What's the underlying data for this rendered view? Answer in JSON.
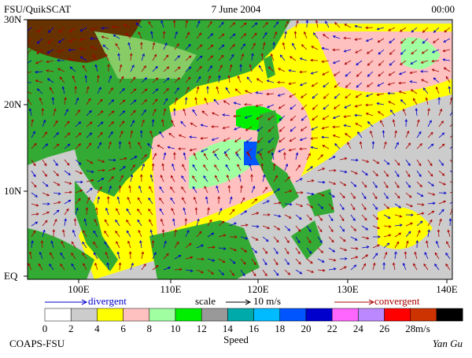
{
  "header": {
    "source": "FSU/QuikSCAT",
    "date": "7 June 2004",
    "time": "00:00"
  },
  "map": {
    "lat_labels": [
      "30N",
      "20N",
      "10N",
      "EQ"
    ],
    "lon_labels": [
      "100E",
      "110E",
      "120E",
      "130E",
      "140E"
    ]
  },
  "legend": {
    "divergent": "divergent",
    "scale": "scale",
    "scale_value": "10 m/s",
    "convergent": "convergent"
  },
  "colorbar": {
    "labels": [
      "0",
      "2",
      "4",
      "6",
      "8",
      "10",
      "12",
      "14",
      "16",
      "18",
      "20",
      "22",
      "24",
      "26",
      "28"
    ],
    "unit": "m/s",
    "title": "Speed",
    "colors": [
      "#ffffff",
      "#cccccc",
      "#ffff00",
      "#ffc0c0",
      "#a0ffa0",
      "#00ee00",
      "#999999",
      "#00aaaa",
      "#00bbff",
      "#0055ff",
      "#0000cc",
      "#ff66ff",
      "#bb88ff",
      "#ff0000",
      "#cc3300",
      "#000000"
    ]
  },
  "footer": {
    "left": "COAPS-FSU",
    "right": "Yan Gu"
  }
}
